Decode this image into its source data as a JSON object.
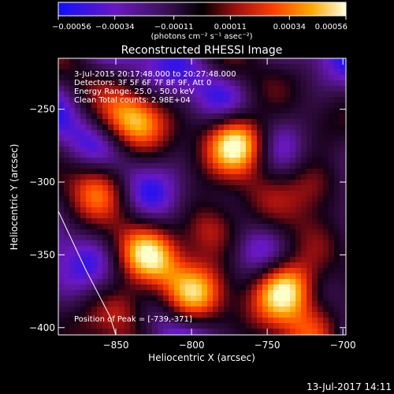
{
  "chart_data": {
    "type": "heatmap",
    "title": "Reconstructed RHESSI Image",
    "xlabel": "Heliocentric X (arcsec)",
    "ylabel": "Heliocentric Y (arcsec)",
    "xlim": [
      -888,
      -698
    ],
    "ylim": [
      -405,
      -215
    ],
    "x_ticks": [
      -850,
      -800,
      -750,
      -700
    ],
    "y_ticks": [
      -250,
      -300,
      -350,
      -400
    ],
    "colorbar": {
      "range": [
        -0.00056,
        0.00056
      ],
      "ticks": [
        -0.00056,
        -0.00034,
        -0.00011,
        0.00011,
        0.00034,
        0.00056
      ],
      "tick_labels": [
        "-0.00056",
        "-0.00034",
        "-0.00011",
        "0.00011",
        "0.00034",
        "0.00056"
      ],
      "unit_label": "(photons cm⁻² s⁻¹ asec⁻²)"
    },
    "annotations": [
      "3-Jul-2015 20:17:48.000 to 20:27:48.000",
      "Detectors: 3F 5F 6F 7F 8F 9F, Att 0",
      "Energy Range: 25.0 - 50.0 keV",
      "Clean     Total counts: 2.98E+04"
    ],
    "peak_label": "Position of Peak = [-739,-371]",
    "peak": [
      -739,
      -371
    ],
    "limb_curve": [
      [
        -888,
        -320
      ],
      [
        -870,
        -360
      ],
      [
        -854,
        -392
      ],
      [
        -850,
        -405
      ]
    ],
    "hot_spots": [
      {
        "x": -770,
        "y": -270,
        "level": 0.9
      },
      {
        "x": -739,
        "y": -371,
        "level": 1.0
      },
      {
        "x": -840,
        "y": -255,
        "level": 0.6
      },
      {
        "x": -830,
        "y": -350,
        "level": 0.6
      },
      {
        "x": -845,
        "y": -385,
        "level": 0.55
      },
      {
        "x": -790,
        "y": -330,
        "level": 0.6
      },
      {
        "x": -720,
        "y": -300,
        "level": 0.55
      },
      {
        "x": -800,
        "y": -375,
        "level": 0.55
      },
      {
        "x": -718,
        "y": -395,
        "level": 0.5
      },
      {
        "x": -862,
        "y": -300,
        "level": 0.45
      }
    ],
    "colors": {
      "background": "#000000",
      "foreground": "#ffffff",
      "colormap": [
        "#0000ff",
        "#6a0dad",
        "#3a1050",
        "#000000",
        "#8b0000",
        "#ff4500",
        "#ffa500",
        "#ffff80",
        "#ffffff"
      ]
    }
  },
  "footer": {
    "date": "13-Jul-2017 14:11"
  }
}
